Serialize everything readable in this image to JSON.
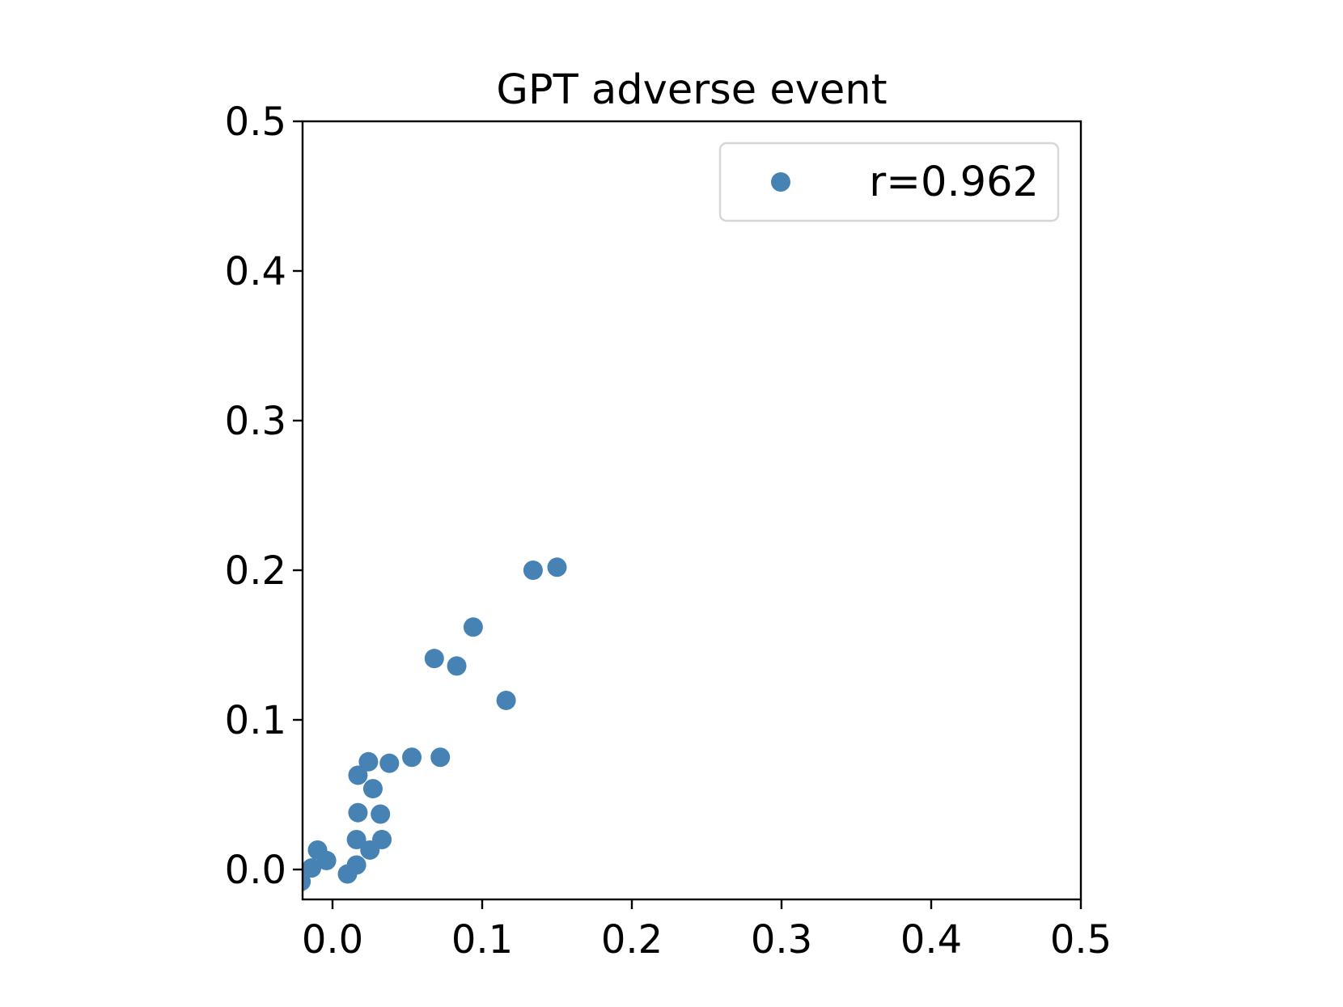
{
  "chart_data": {
    "type": "scatter",
    "title": "GPT adverse event",
    "xlabel": "",
    "ylabel": "",
    "xlim": [
      -0.02,
      0.5
    ],
    "ylim": [
      -0.02,
      0.5
    ],
    "xticks": [
      0.0,
      0.1,
      0.2,
      0.3,
      0.4,
      0.5
    ],
    "yticks": [
      0.0,
      0.1,
      0.2,
      0.3,
      0.4,
      0.5
    ],
    "xtick_labels": [
      "0.0",
      "0.1",
      "0.2",
      "0.3",
      "0.4",
      "0.5"
    ],
    "ytick_labels": [
      "0.0",
      "0.1",
      "0.2",
      "0.3",
      "0.4",
      "0.5"
    ],
    "grid": false,
    "legend_position": "top-right",
    "series": [
      {
        "name": "r=0.962",
        "color": "#4682b4",
        "x": [
          -0.021,
          -0.014,
          -0.01,
          -0.004,
          0.01,
          0.016,
          0.016,
          0.017,
          0.017,
          0.024,
          0.025,
          0.027,
          0.032,
          0.033,
          0.038,
          0.053,
          0.068,
          0.072,
          0.083,
          0.094,
          0.116,
          0.134,
          0.15
        ],
        "y": [
          -0.008,
          0.001,
          0.013,
          0.006,
          -0.003,
          0.003,
          0.02,
          0.038,
          0.063,
          0.072,
          0.013,
          0.054,
          0.037,
          0.02,
          0.071,
          0.075,
          0.141,
          0.075,
          0.136,
          0.162,
          0.113,
          0.2,
          0.202
        ]
      }
    ]
  }
}
